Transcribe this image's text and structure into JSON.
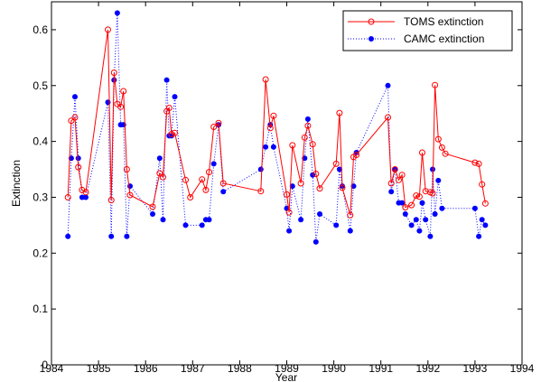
{
  "chart_data": {
    "type": "line",
    "title": "",
    "xlabel": "Year",
    "ylabel": "Extinction",
    "xlim": [
      1984,
      1994
    ],
    "ylim": [
      0,
      0.65
    ],
    "xticks": [
      1984,
      1985,
      1986,
      1987,
      1988,
      1989,
      1990,
      1991,
      1992,
      1993,
      1994
    ],
    "yticks": [
      0,
      0.1,
      0.2,
      0.3,
      0.4,
      0.5,
      0.6
    ],
    "grid": false,
    "legend_position": "top-right",
    "series": [
      {
        "name": "TOMS extinction",
        "color": "#ff0000",
        "line_style": "solid",
        "marker": "open-circle",
        "points": [
          [
            1984.35,
            0.3
          ],
          [
            1984.42,
            0.437
          ],
          [
            1984.5,
            0.443
          ],
          [
            1984.57,
            0.354
          ],
          [
            1984.65,
            0.313
          ],
          [
            1984.73,
            0.309
          ],
          [
            1985.2,
            0.6
          ],
          [
            1985.27,
            0.295
          ],
          [
            1985.33,
            0.523
          ],
          [
            1985.4,
            0.467
          ],
          [
            1985.47,
            0.462
          ],
          [
            1985.53,
            0.49
          ],
          [
            1985.6,
            0.35
          ],
          [
            1985.67,
            0.304
          ],
          [
            1986.15,
            0.283
          ],
          [
            1986.3,
            0.343
          ],
          [
            1986.37,
            0.336
          ],
          [
            1986.45,
            0.454
          ],
          [
            1986.5,
            0.46
          ],
          [
            1986.55,
            0.413
          ],
          [
            1986.62,
            0.415
          ],
          [
            1986.85,
            0.331
          ],
          [
            1986.95,
            0.3
          ],
          [
            1987.2,
            0.332
          ],
          [
            1987.28,
            0.313
          ],
          [
            1987.35,
            0.345
          ],
          [
            1987.45,
            0.426
          ],
          [
            1987.55,
            0.433
          ],
          [
            1987.65,
            0.325
          ],
          [
            1988.45,
            0.311
          ],
          [
            1988.55,
            0.511
          ],
          [
            1988.65,
            0.424
          ],
          [
            1988.72,
            0.446
          ],
          [
            1989.0,
            0.305
          ],
          [
            1989.05,
            0.273
          ],
          [
            1989.12,
            0.393
          ],
          [
            1989.3,
            0.325
          ],
          [
            1989.38,
            0.407
          ],
          [
            1989.45,
            0.428
          ],
          [
            1989.55,
            0.395
          ],
          [
            1989.62,
            0.342
          ],
          [
            1989.7,
            0.316
          ],
          [
            1990.05,
            0.36
          ],
          [
            1990.12,
            0.451
          ],
          [
            1990.18,
            0.317
          ],
          [
            1990.35,
            0.268
          ],
          [
            1990.42,
            0.372
          ],
          [
            1990.48,
            0.376
          ],
          [
            1991.15,
            0.443
          ],
          [
            1991.22,
            0.325
          ],
          [
            1991.3,
            0.35
          ],
          [
            1991.38,
            0.331
          ],
          [
            1991.45,
            0.34
          ],
          [
            1991.52,
            0.282
          ],
          [
            1991.65,
            0.286
          ],
          [
            1991.75,
            0.303
          ],
          [
            1991.82,
            0.301
          ],
          [
            1991.88,
            0.38
          ],
          [
            1991.95,
            0.311
          ],
          [
            1992.05,
            0.309
          ],
          [
            1992.1,
            0.307
          ],
          [
            1992.15,
            0.501
          ],
          [
            1992.22,
            0.404
          ],
          [
            1992.3,
            0.389
          ],
          [
            1992.37,
            0.378
          ],
          [
            1993.0,
            0.362
          ],
          [
            1993.08,
            0.36
          ],
          [
            1993.15,
            0.323
          ],
          [
            1993.22,
            0.289
          ]
        ]
      },
      {
        "name": "CAMC extinction",
        "color": "#0000ff",
        "line_style": "dotted",
        "marker": "filled-dot",
        "points": [
          [
            1984.35,
            0.23
          ],
          [
            1984.42,
            0.37
          ],
          [
            1984.5,
            0.48
          ],
          [
            1984.57,
            0.37
          ],
          [
            1984.65,
            0.3
          ],
          [
            1984.73,
            0.3
          ],
          [
            1985.2,
            0.47
          ],
          [
            1985.27,
            0.23
          ],
          [
            1985.33,
            0.51
          ],
          [
            1985.4,
            0.63
          ],
          [
            1985.47,
            0.43
          ],
          [
            1985.53,
            0.43
          ],
          [
            1985.6,
            0.23
          ],
          [
            1985.67,
            0.32
          ],
          [
            1986.15,
            0.27
          ],
          [
            1986.3,
            0.37
          ],
          [
            1986.37,
            0.26
          ],
          [
            1986.45,
            0.51
          ],
          [
            1986.5,
            0.41
          ],
          [
            1986.55,
            0.41
          ],
          [
            1986.62,
            0.48
          ],
          [
            1986.85,
            0.25
          ],
          [
            1987.2,
            0.25
          ],
          [
            1987.28,
            0.26
          ],
          [
            1987.35,
            0.26
          ],
          [
            1987.45,
            0.36
          ],
          [
            1987.55,
            0.43
          ],
          [
            1987.65,
            0.31
          ],
          [
            1988.45,
            0.35
          ],
          [
            1988.55,
            0.39
          ],
          [
            1988.65,
            0.43
          ],
          [
            1988.72,
            0.39
          ],
          [
            1989.0,
            0.28
          ],
          [
            1989.05,
            0.24
          ],
          [
            1989.12,
            0.32
          ],
          [
            1989.3,
            0.26
          ],
          [
            1989.38,
            0.37
          ],
          [
            1989.45,
            0.44
          ],
          [
            1989.55,
            0.34
          ],
          [
            1989.62,
            0.22
          ],
          [
            1989.7,
            0.27
          ],
          [
            1990.05,
            0.25
          ],
          [
            1990.12,
            0.35
          ],
          [
            1990.18,
            0.32
          ],
          [
            1990.35,
            0.24
          ],
          [
            1990.42,
            0.32
          ],
          [
            1990.48,
            0.38
          ],
          [
            1991.15,
            0.5
          ],
          [
            1991.22,
            0.31
          ],
          [
            1991.3,
            0.35
          ],
          [
            1991.38,
            0.29
          ],
          [
            1991.45,
            0.29
          ],
          [
            1991.52,
            0.27
          ],
          [
            1991.65,
            0.25
          ],
          [
            1991.75,
            0.26
          ],
          [
            1991.82,
            0.24
          ],
          [
            1991.88,
            0.29
          ],
          [
            1991.95,
            0.26
          ],
          [
            1992.05,
            0.23
          ],
          [
            1992.1,
            0.35
          ],
          [
            1992.15,
            0.27
          ],
          [
            1992.22,
            0.33
          ],
          [
            1992.3,
            0.28
          ],
          [
            1993.0,
            0.28
          ],
          [
            1993.08,
            0.23
          ],
          [
            1993.15,
            0.26
          ],
          [
            1993.22,
            0.25
          ]
        ]
      }
    ]
  }
}
